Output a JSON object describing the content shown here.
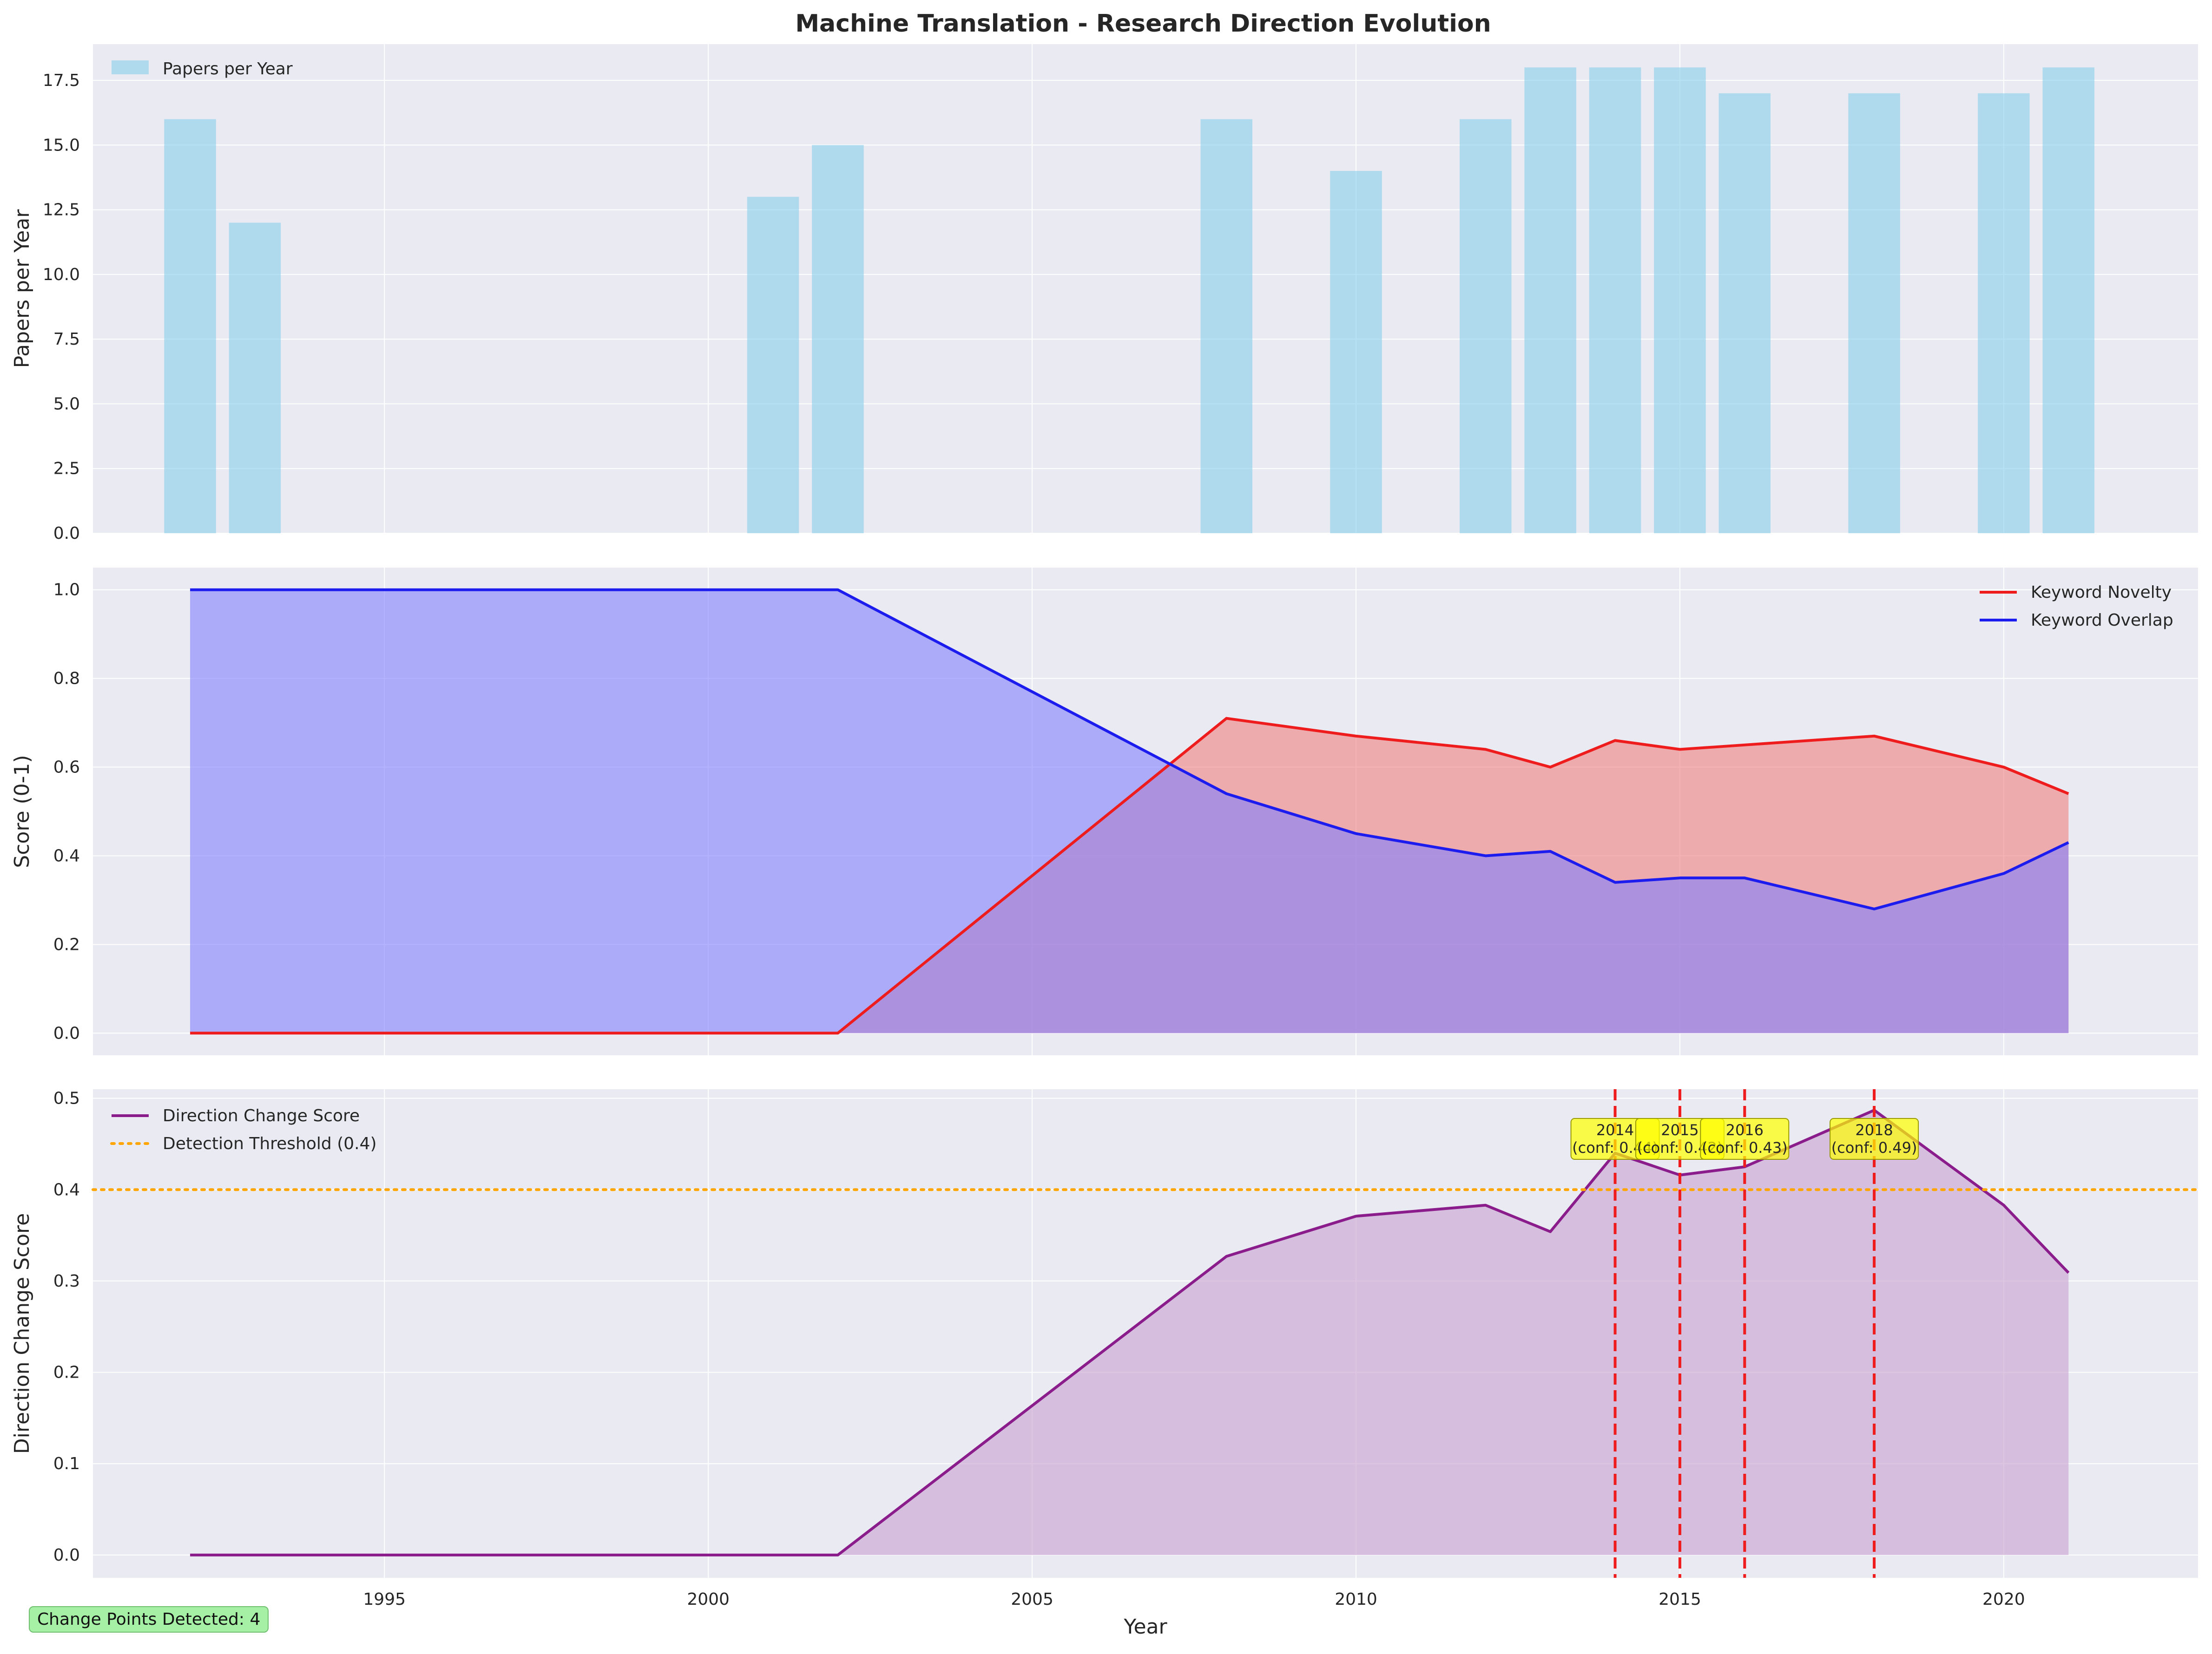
{
  "chart_data": [
    {
      "type": "bar",
      "title": "Machine Translation - Research Direction Evolution",
      "xlabel": "",
      "ylabel": "Papers per Year",
      "xlim": [
        1990.5,
        2023
      ],
      "ylim": [
        0,
        18.9
      ],
      "yticks": [
        "0.0",
        "2.5",
        "5.0",
        "7.5",
        "10.0",
        "12.5",
        "15.0",
        "17.5"
      ],
      "series": [
        {
          "name": "Papers per Year",
          "color": "#87ceeb",
          "x": [
            1992,
            1993,
            2001,
            2002,
            2008,
            2010,
            2012,
            2013,
            2014,
            2015,
            2016,
            2018,
            2020,
            2021
          ],
          "values": [
            16,
            12,
            13,
            15,
            16,
            14,
            16,
            18,
            18,
            18,
            17,
            17,
            17,
            18
          ]
        }
      ],
      "legend": "top-left",
      "grid": true
    },
    {
      "type": "area",
      "xlabel": "",
      "ylabel": "Score (0-1)",
      "xlim": [
        1990.5,
        2023
      ],
      "ylim": [
        -0.05,
        1.05
      ],
      "yticks": [
        "0.0",
        "0.2",
        "0.4",
        "0.6",
        "0.8",
        "1.0"
      ],
      "x": [
        1992,
        1993,
        2001,
        2002,
        2008,
        2010,
        2012,
        2013,
        2014,
        2015,
        2016,
        2018,
        2020,
        2021
      ],
      "series": [
        {
          "name": "Keyword Novelty",
          "color": "#ee1c1c",
          "fill": "#f08080",
          "values": [
            0,
            0,
            0,
            0,
            0.71,
            0.67,
            0.64,
            0.6,
            0.66,
            0.64,
            0.65,
            0.67,
            0.6,
            0.54
          ]
        },
        {
          "name": "Keyword Overlap",
          "color": "#1c1cee",
          "fill": "#8080ff",
          "values": [
            1,
            1,
            1,
            1,
            0.54,
            0.45,
            0.4,
            0.41,
            0.34,
            0.35,
            0.35,
            0.28,
            0.36,
            0.43
          ]
        }
      ],
      "legend": "top-right",
      "grid": true
    },
    {
      "type": "area",
      "xlabel": "Year",
      "ylabel": "Direction Change Score",
      "xlim": [
        1990.5,
        2023
      ],
      "ylim": [
        -0.025,
        0.51
      ],
      "xticks": [
        "1995",
        "2000",
        "2005",
        "2010",
        "2015",
        "2020"
      ],
      "yticks": [
        "0.0",
        "0.1",
        "0.2",
        "0.3",
        "0.4",
        "0.5"
      ],
      "x": [
        1992,
        1993,
        2001,
        2002,
        2008,
        2010,
        2012,
        2013,
        2014,
        2015,
        2016,
        2018,
        2020,
        2021
      ],
      "series": [
        {
          "name": "Direction Change Score",
          "color": "#8b1c8b",
          "fill": "#c8a0d0",
          "values": [
            0,
            0,
            0,
            0,
            0.327,
            0.371,
            0.383,
            0.354,
            0.44,
            0.416,
            0.425,
            0.487,
            0.383,
            0.309
          ]
        }
      ],
      "threshold": {
        "label": "Detection Threshold (0.4)",
        "value": 0.4,
        "color": "#ffa500"
      },
      "change_points": [
        {
          "year": 2014,
          "label": "2014\n(conf: 0.44)"
        },
        {
          "year": 2015,
          "label": "2015\n(conf: 0.42)"
        },
        {
          "year": 2016,
          "label": "2016\n(conf: 0.43)"
        },
        {
          "year": 2018,
          "label": "2018\n(conf: 0.49)"
        }
      ],
      "legend": "top-left",
      "grid": true
    }
  ],
  "footer": {
    "change_points_text": "Change Points Detected: 4"
  }
}
